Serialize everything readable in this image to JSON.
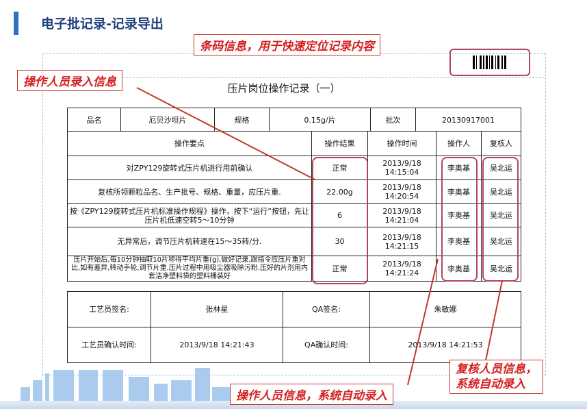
{
  "header": {
    "title": "电子批记录-记录导出"
  },
  "callouts": {
    "barcode": "条码信息，用于快速定位记录内容",
    "operator_entry": "操作人员录入信息",
    "operator_auto": "操作人员信息，系统自动录入",
    "reviewer_auto_1": "复核人员信息，",
    "reviewer_auto_2": "系统自动录入"
  },
  "document": {
    "title": "压片岗位操作记录（一）",
    "info": {
      "name_label": "品名",
      "name": "厄贝沙坦片",
      "spec_label": "规格",
      "spec": "0.15g/片",
      "batch_label": "批次",
      "batch": "20130917001"
    },
    "columns": [
      "操作要点",
      "操作结果",
      "操作时间",
      "操作人",
      "复核人"
    ],
    "rows": [
      {
        "point": "对ZPY129旋转式压片机进行用前确认",
        "result": "正常",
        "date": "2013/9/18",
        "time": "14:15:04",
        "operator": "李奥基",
        "reviewer": "吴北运"
      },
      {
        "point": "复核所领颗粒品名、生产批号、规格、重量，应压片重.",
        "result": "22.00g",
        "date": "2013/9/18",
        "time": "14:20:54",
        "operator": "李奥基",
        "reviewer": "吴北运"
      },
      {
        "point": "按《ZPY129旋转式压片机标准操作规程》操作，按下“运行”按钮，先让压片机低速空转5～10分钟",
        "result": "6",
        "date": "2013/9/18",
        "time": "14:21:04",
        "operator": "李奥基",
        "reviewer": "吴北运"
      },
      {
        "point": "无异常后，调节压片机转速在15～35转/分.",
        "result": "30",
        "date": "2013/9/18",
        "time": "14:21:15",
        "operator": "李奥基",
        "reviewer": "吴北运"
      },
      {
        "point": "压片开始后,每10分钟抽取10片称得平均片重(g),做好记录,跟指令应压片重对比,如有差异,转动手轮,调节片重.压片过程中用吸尘器吸除污粉.压好的片剂用内套洁净塑料袋的塑料桶装好",
        "result": "正常",
        "date": "2013/9/18",
        "time": "14:21:24",
        "operator": "李奥基",
        "reviewer": "吴北运"
      }
    ],
    "signatures": {
      "tech_label": "工艺员签名:",
      "tech": "张林星",
      "qa_label": "QA签名:",
      "qa": "朱敏娜",
      "tech_time_label": "工艺员确认时间:",
      "tech_time": "2013/9/18 14:21:43",
      "qa_time_label": "QA确认时间:",
      "qa_time": "2013/9/18 14:21:53"
    }
  },
  "colors": {
    "accent": "#2f6fc4",
    "callout": "#d41f1f",
    "highlight": "#b0475a"
  }
}
